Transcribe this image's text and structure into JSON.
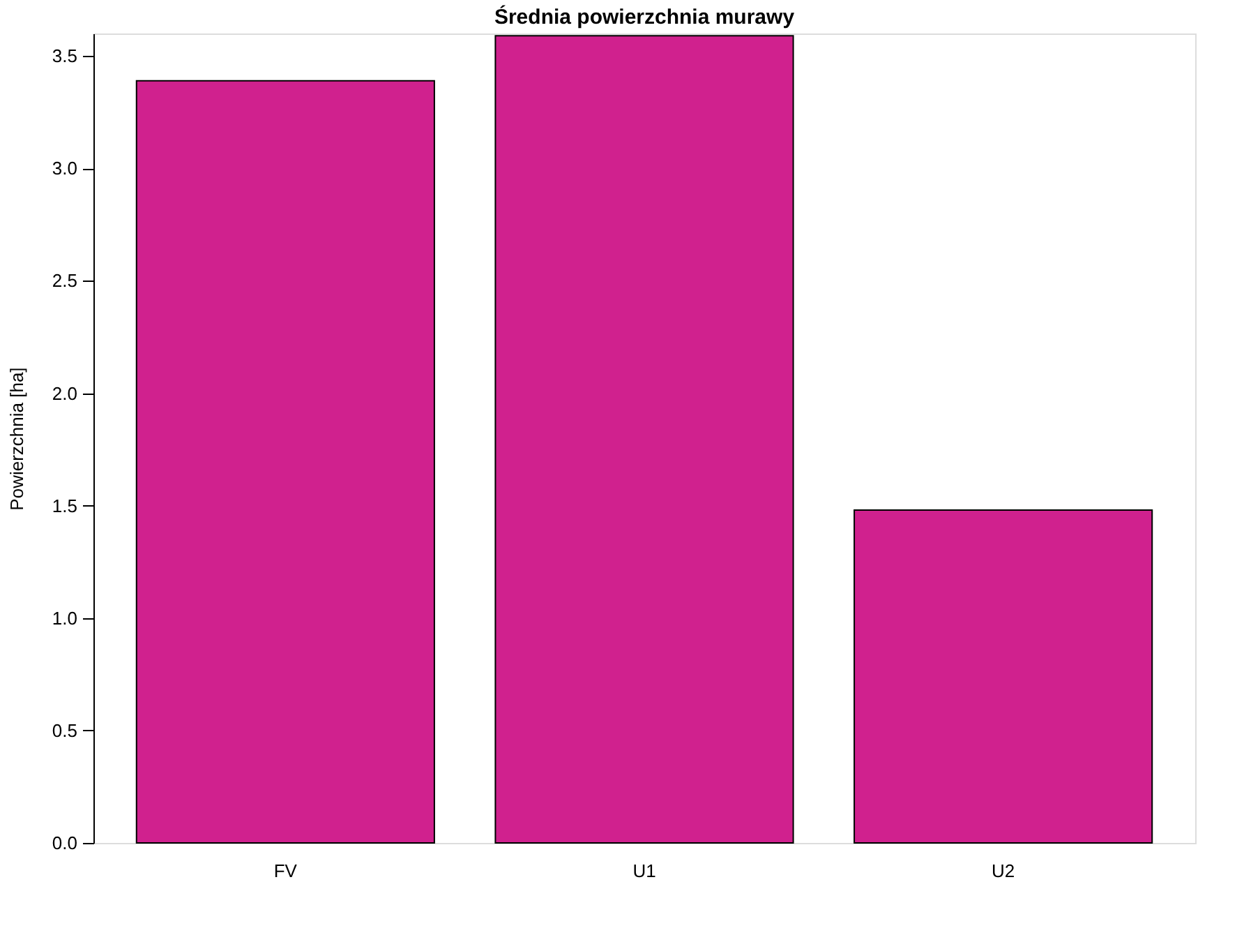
{
  "chart_data": {
    "type": "bar",
    "title": "Średnia powierzchnia murawy",
    "ylabel": "Powierzchnia [ha]",
    "categories": [
      "FV",
      "U1",
      "U2"
    ],
    "values": [
      3.39,
      3.59,
      1.48
    ],
    "color": "#d0218e",
    "ylim": [
      0,
      3.6
    ],
    "yticks": [
      {
        "value": 0,
        "label": "0.0"
      },
      0.5,
      {
        "value": 1,
        "label": "1.0"
      },
      1.5,
      {
        "value": 2,
        "label": "2.0"
      },
      2.5,
      {
        "value": 3,
        "label": "3.0"
      },
      3.5
    ],
    "grid": false
  }
}
